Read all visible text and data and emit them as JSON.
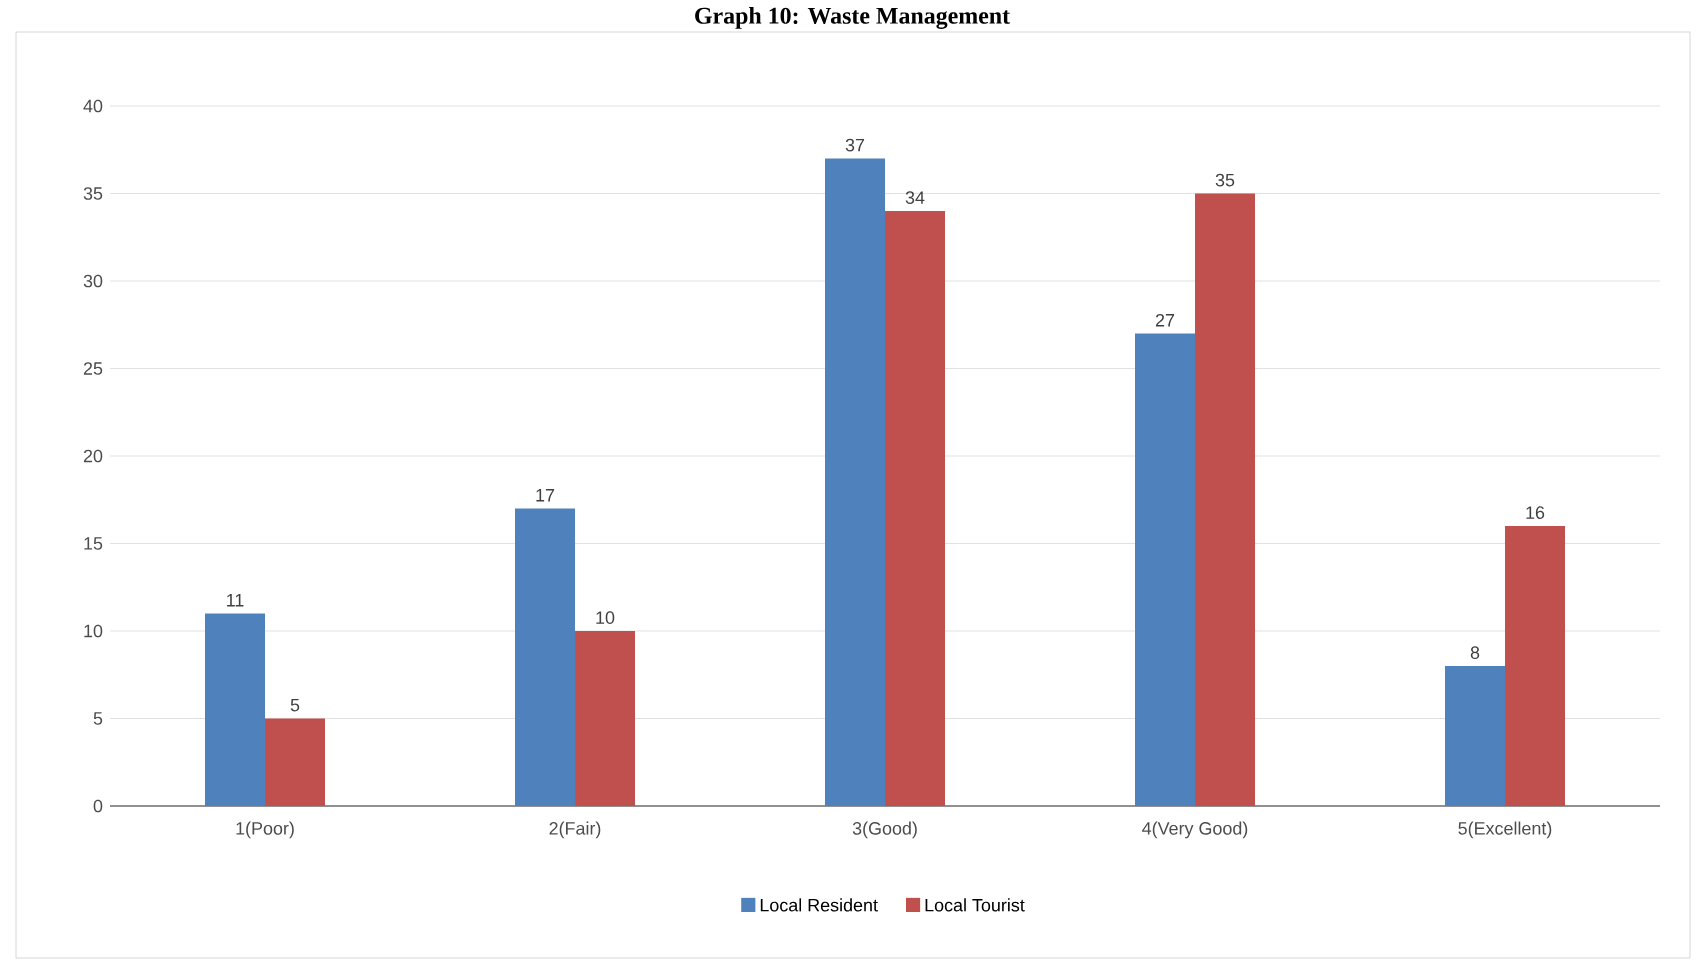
{
  "chart_data": {
    "type": "bar",
    "title": "Graph 10: Waste Management",
    "categories": [
      "1(Poor)",
      "2(Fair)",
      "3(Good)",
      "4(Very  Good)",
      "5(Excellent)"
    ],
    "series": [
      {
        "name": "Local Resident",
        "color": "#4f81bd",
        "values": [
          11,
          17,
          37,
          27,
          8
        ]
      },
      {
        "name": "Local Tourist",
        "color": "#c0504d",
        "values": [
          5,
          10,
          34,
          35,
          16
        ]
      }
    ],
    "ylim": [
      0,
      40
    ],
    "yticks": [
      0,
      5,
      10,
      15,
      20,
      25,
      30,
      35,
      40
    ],
    "grid": "y",
    "legend": "bottom",
    "data_labels": true
  }
}
